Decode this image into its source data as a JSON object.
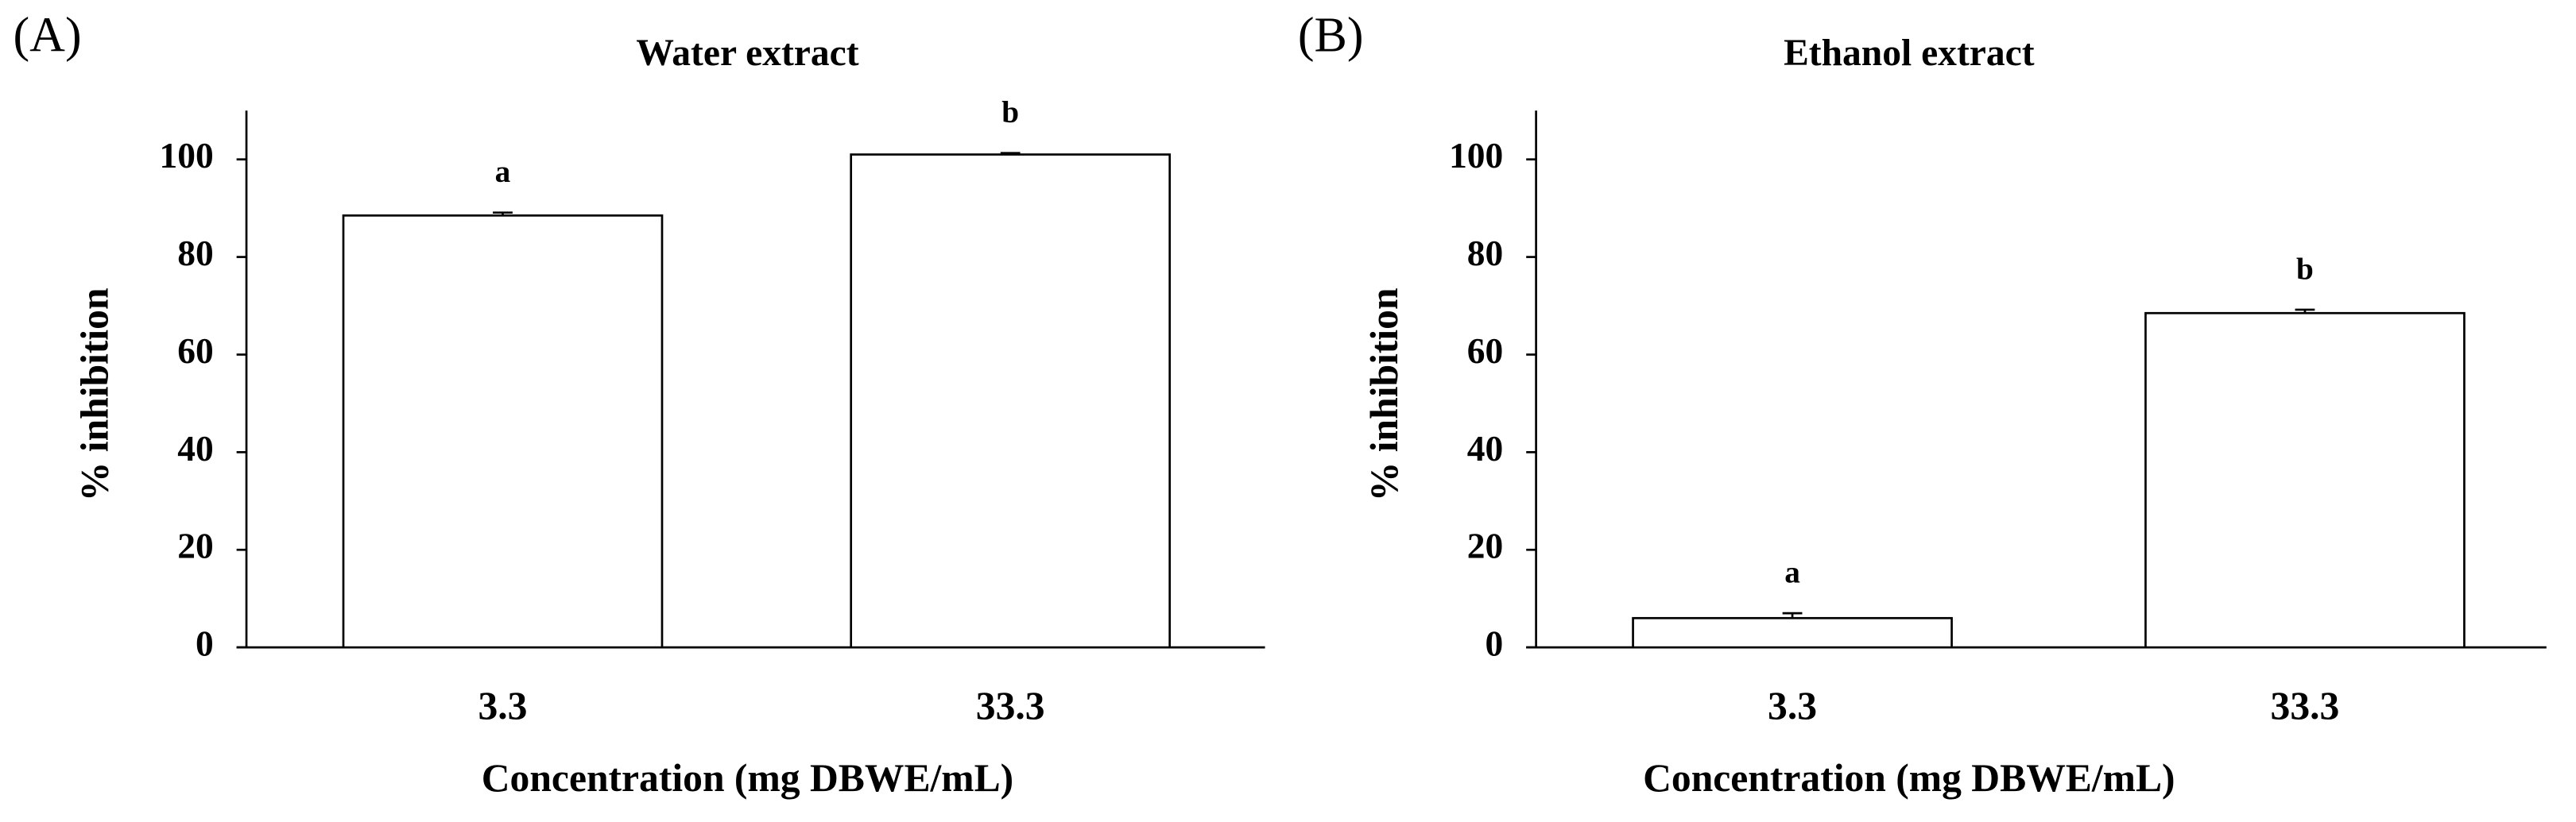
{
  "chart_data": [
    {
      "type": "bar",
      "panel_label": "(A)",
      "title": "Water extract",
      "x_label": "Concentration (mg DBWE/mL)",
      "y_label": "% inhibition",
      "categories": [
        "3.3",
        "33.3"
      ],
      "values": [
        88.5,
        101
      ],
      "errors": [
        0.6,
        0.3
      ],
      "annotations": [
        "a",
        "b"
      ],
      "color": "#ffffff",
      "ylim": [
        0,
        110
      ],
      "yticks": [
        0,
        20,
        40,
        60,
        80,
        100
      ]
    },
    {
      "type": "bar",
      "panel_label": "(B)",
      "title": "Ethanol  extract",
      "x_label": "Concentration (mg DBWE/mL)",
      "y_label": "% inhibition",
      "categories": [
        "3.3",
        "33.3"
      ],
      "values": [
        6,
        68.5
      ],
      "errors": [
        1,
        0.7
      ],
      "annotations": [
        "a",
        "b"
      ],
      "color": "#ffffff",
      "ylim": [
        0,
        110
      ],
      "yticks": [
        0,
        20,
        40,
        60,
        80,
        100
      ]
    }
  ]
}
